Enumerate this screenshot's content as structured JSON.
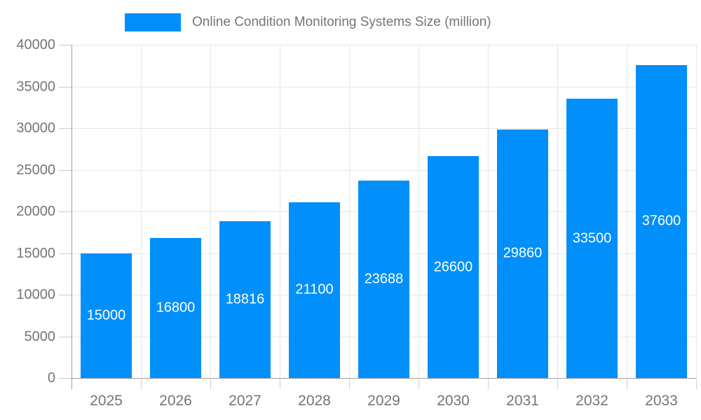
{
  "legend": {
    "label": "Online Condition Monitoring Systems Size (million)",
    "swatch_color": "#008FFB"
  },
  "chart_data": {
    "type": "bar",
    "title": "Online Condition Monitoring Systems Size (million)",
    "series_name": "Online Condition Monitoring Systems Size (million)",
    "categories": [
      "2025",
      "2026",
      "2027",
      "2028",
      "2029",
      "2030",
      "2031",
      "2032",
      "2033"
    ],
    "values": [
      15000,
      16800,
      18816,
      21100,
      23688,
      26600,
      29860,
      33500,
      37600
    ],
    "value_labels": [
      "15000",
      "16800",
      "18816",
      "21100",
      "23688",
      "26600",
      "29860",
      "33500",
      "37600"
    ],
    "xlabel": "",
    "ylabel": "",
    "ylim": [
      0,
      40000
    ],
    "ytick_step": 5000,
    "yticks": [
      0,
      5000,
      10000,
      15000,
      20000,
      25000,
      30000,
      35000,
      40000
    ],
    "ytick_labels": [
      "0",
      "5000",
      "10000",
      "15000",
      "20000",
      "25000",
      "30000",
      "35000",
      "40000"
    ],
    "grid": true,
    "legend_position": "top",
    "bar_color": "#008FFB",
    "value_label_color": "#ffffff",
    "axis_label_color": "#757575",
    "gridline_color": "#e6e6e6",
    "axis_line_color": "#9e9e9e",
    "background_color": "#ffffff"
  }
}
